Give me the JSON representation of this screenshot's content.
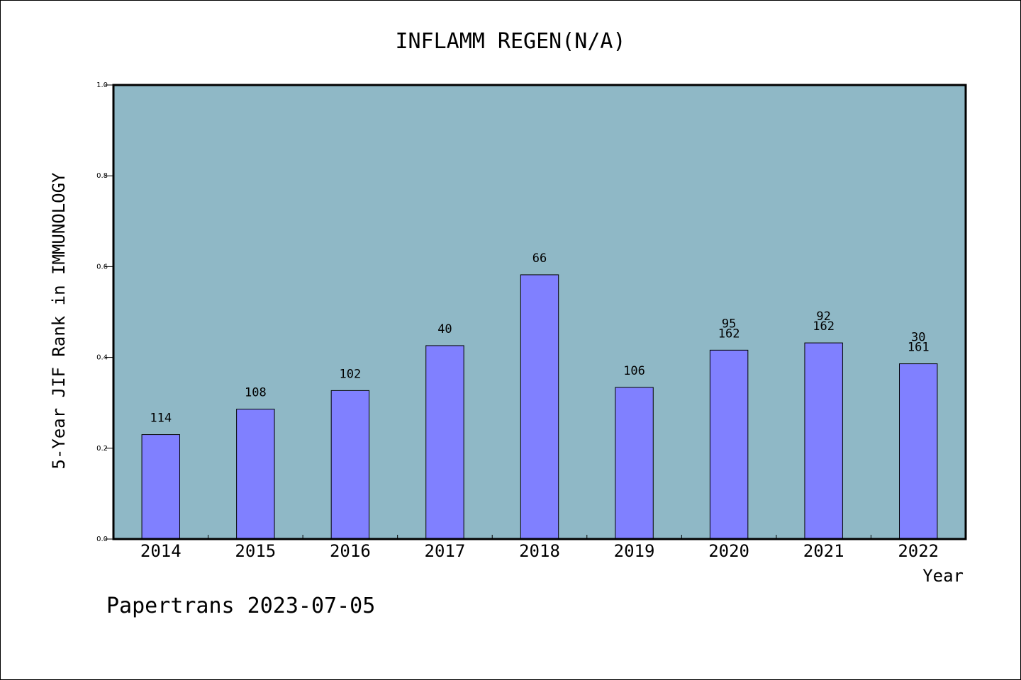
{
  "chart_data": {
    "type": "bar",
    "title": "INFLAMM REGEN(N/A)",
    "xlabel": "Year",
    "ylabel": "5-Year JIF Rank in IMMUNOLOGY",
    "ylim": [
      0,
      1.0
    ],
    "yticks": [
      "0.0",
      "0.2",
      "0.4",
      "0.6",
      "0.8",
      "1.0"
    ],
    "categories": [
      "2014",
      "2015",
      "2016",
      "2017",
      "2018",
      "2019",
      "2020",
      "2021",
      "2022"
    ],
    "values": [
      0.23,
      0.286,
      0.327,
      0.426,
      0.582,
      0.334,
      0.416,
      0.432,
      0.386
    ],
    "bar_labels": [
      [
        "114"
      ],
      [
        "108"
      ],
      [
        "102"
      ],
      [
        "40"
      ],
      [
        "66"
      ],
      [
        "106"
      ],
      [
        "95",
        "162"
      ],
      [
        "92",
        "162"
      ],
      [
        "30",
        "161"
      ]
    ],
    "grid": false,
    "colors": {
      "plot_bg": "#8fb8c6",
      "bar": "#8080ff",
      "bar_edge": "#000000"
    }
  },
  "footer": {
    "credit": "Papertrans 2023-07-05"
  }
}
